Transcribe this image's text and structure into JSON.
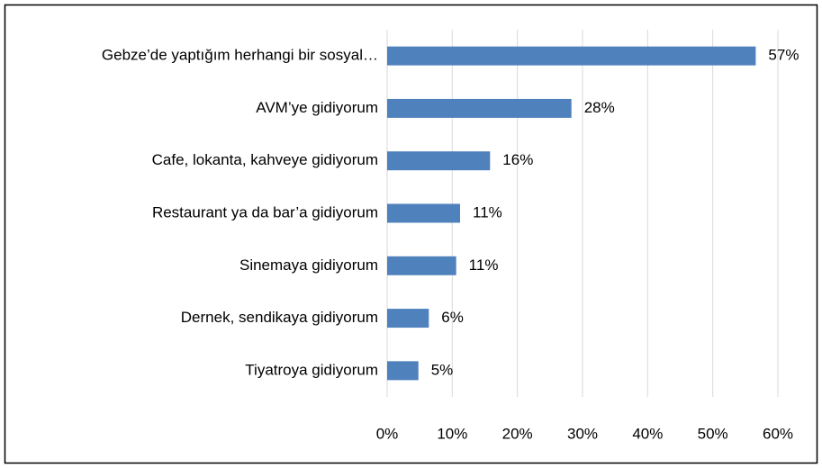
{
  "chart_data": {
    "type": "bar",
    "orientation": "horizontal",
    "categories": [
      "Gebze’de yaptığım herhangi bir sosyal…",
      "AVM’ye gidiyorum",
      "Cafe, lokanta, kahveye gidiyorum",
      "Restaurant ya da bar’a gidiyorum",
      "Sinemaya gidiyorum",
      "Dernek, sendikaya gidiyorum",
      "Tiyatroya gidiyorum"
    ],
    "values": [
      56.6,
      28.3,
      15.8,
      11.2,
      10.6,
      6.4,
      4.8
    ],
    "value_labels": [
      "57%",
      "28%",
      "16%",
      "11%",
      "11%",
      "6%",
      "5%"
    ],
    "color": "#4f81bd",
    "xlim": [
      0,
      60
    ],
    "xticks": [
      {
        "value": 0,
        "label": "0%"
      },
      {
        "value": 10,
        "label": "10%"
      },
      {
        "value": 20,
        "label": "20%"
      },
      {
        "value": 30,
        "label": "30%"
      },
      {
        "value": 40,
        "label": "40%"
      },
      {
        "value": 50,
        "label": "50%"
      },
      {
        "value": 60,
        "label": "60%"
      }
    ],
    "grid": true
  }
}
